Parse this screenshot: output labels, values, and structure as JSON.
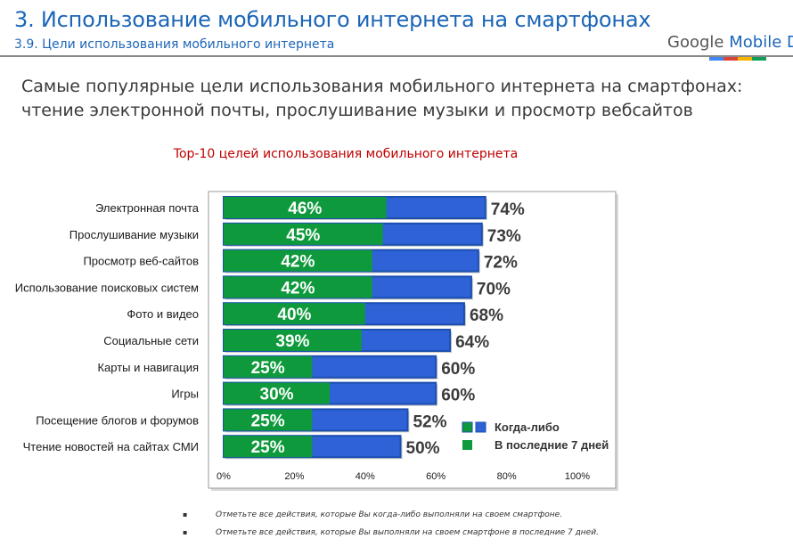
{
  "header": {
    "title": "3. Использование мобильного интернета на смартфонах",
    "subtitle": "3.9. Цели использования мобильного интернета",
    "logo_google": "Google",
    "logo_mobile_day": "Mobile Day",
    "strip_colors": [
      "#4285f4",
      "#db4437",
      "#f4b400",
      "#0f9d58"
    ]
  },
  "slide_subtitle": [
    "Самые популярные цели использования мобильного интернета на смартфонах:",
    "чтение электронной почты, прослушивание музыки и просмотр вебсайтов"
  ],
  "chart_data": {
    "type": "bar",
    "orientation": "horizontal",
    "title": "Top-10 целей использования мобильного интернета",
    "categories": [
      "Электронная почта",
      "Прослушивание музыки",
      "Просмотр веб-сайтов",
      "Использование поисковых систем",
      "Фото и видео",
      "Социальные сети",
      "Карты и навигация",
      "Игры",
      "Посещение блогов и форумов",
      "Чтение новостей на сайтах СМИ"
    ],
    "series": [
      {
        "name": "Когда-либо",
        "color": "#2e62d6",
        "values": [
          74,
          73,
          72,
          70,
          68,
          64,
          60,
          60,
          52,
          50
        ],
        "labels": [
          "74%",
          "73%",
          "72%",
          "70%",
          "68%",
          "64%",
          "60%",
          "60%",
          "52%",
          "50%"
        ]
      },
      {
        "name": "В последние 7 дней",
        "color": "#0e9a3c",
        "values": [
          46,
          45,
          42,
          42,
          40,
          39,
          25,
          30,
          25,
          25
        ],
        "labels": [
          "46%",
          "45%",
          "42%",
          "42%",
          "40%",
          "39%",
          "25%",
          "30%",
          "25%",
          "25%"
        ]
      }
    ],
    "xlim": [
      0,
      100
    ],
    "xticks": [
      0,
      20,
      40,
      60,
      80,
      100
    ],
    "xtick_labels": [
      "0%",
      "20%",
      "40%",
      "60%",
      "80%",
      "100%"
    ],
    "legend_position": "bottom-right",
    "grid": false
  },
  "footnotes": [
    "Отметьте все действия, которые Вы когда-либо выполняли на своем смартфоне.",
    "Отметьте все действия, которые Вы выполняли на своем смартфоне в последние 7 дней."
  ],
  "footnote_bullet": "▪"
}
